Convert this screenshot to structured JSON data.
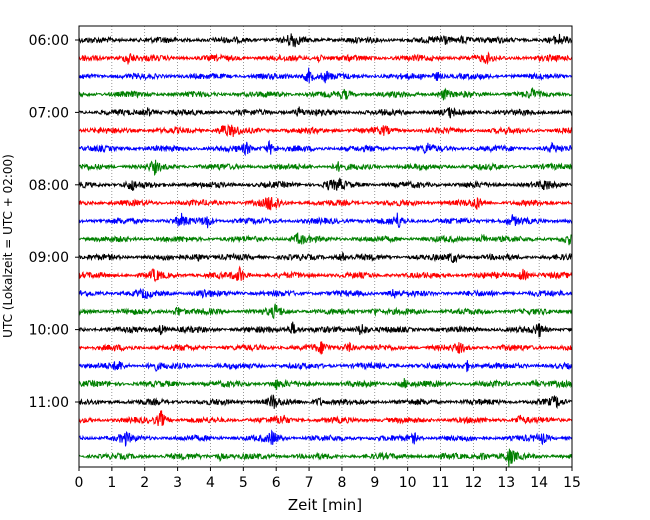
{
  "chart_data": {
    "type": "line",
    "xlabel": "Zeit  [min]",
    "ylabel": "UTC (Lokalzeit = UTC + 02:00)",
    "xlim": [
      0,
      15
    ],
    "x_ticks": [
      "0",
      "1",
      "2",
      "3",
      "4",
      "5",
      "6",
      "7",
      "8",
      "9",
      "10",
      "11",
      "12",
      "13",
      "14",
      "15"
    ],
    "y_ticks": [
      "06:00",
      "07:00",
      "08:00",
      "09:00",
      "10:00",
      "11:00"
    ],
    "y_tick_rows": [
      0,
      4,
      8,
      12,
      16,
      20
    ],
    "grid": "vertical dotted",
    "row_interval_min": 15,
    "rows": 24,
    "series_colors": [
      "#000000",
      "#ff0000",
      "#0000ff",
      "#008000"
    ],
    "traces": [
      {
        "start": "06:00",
        "color": "#000000",
        "events": [
          [
            6.5,
            1.0
          ],
          [
            11.1,
            0.7
          ],
          [
            11.7,
            0.6
          ],
          [
            14.6,
            0.5
          ]
        ]
      },
      {
        "start": "06:15",
        "color": "#ff0000",
        "events": [
          [
            1.5,
            0.8
          ],
          [
            7.3,
            0.4
          ],
          [
            12.4,
            0.4
          ]
        ]
      },
      {
        "start": "06:30",
        "color": "#0000ff",
        "events": [
          [
            7.0,
            0.9
          ],
          [
            7.5,
            0.6
          ],
          [
            10.9,
            0.5
          ]
        ]
      },
      {
        "start": "06:45",
        "color": "#008000",
        "events": [
          [
            8.1,
            0.5
          ],
          [
            11.1,
            0.6
          ],
          [
            13.8,
            0.4
          ]
        ]
      },
      {
        "start": "07:00",
        "color": "#000000",
        "events": [
          [
            2.1,
            0.5
          ],
          [
            6.7,
            0.5
          ],
          [
            11.3,
            0.4
          ]
        ]
      },
      {
        "start": "07:15",
        "color": "#ff0000",
        "events": [
          [
            4.4,
            0.7
          ],
          [
            4.7,
            0.5
          ],
          [
            9.3,
            0.4
          ]
        ]
      },
      {
        "start": "07:30",
        "color": "#0000ff",
        "events": [
          [
            5.1,
            0.6
          ],
          [
            5.8,
            0.8
          ],
          [
            10.6,
            0.5
          ],
          [
            14.4,
            0.4
          ]
        ]
      },
      {
        "start": "07:45",
        "color": "#008000",
        "events": [
          [
            2.3,
            0.6
          ],
          [
            7.9,
            0.4
          ]
        ]
      },
      {
        "start": "08:00",
        "color": "#000000",
        "events": [
          [
            1.6,
            0.6
          ],
          [
            7.6,
            0.4
          ],
          [
            7.9,
            0.6
          ],
          [
            14.2,
            0.5
          ]
        ]
      },
      {
        "start": "08:15",
        "color": "#ff0000",
        "events": [
          [
            5.8,
            0.7
          ],
          [
            6.0,
            0.5
          ],
          [
            12.1,
            0.6
          ]
        ]
      },
      {
        "start": "08:30",
        "color": "#0000ff",
        "events": [
          [
            3.1,
            0.7
          ],
          [
            3.9,
            0.7
          ],
          [
            9.7,
            0.8
          ],
          [
            13.2,
            0.5
          ]
        ]
      },
      {
        "start": "08:45",
        "color": "#008000",
        "events": [
          [
            6.7,
            0.7
          ],
          [
            12.3,
            0.5
          ],
          [
            14.9,
            0.5
          ]
        ]
      },
      {
        "start": "09:00",
        "color": "#000000",
        "events": [
          [
            3.6,
            0.5
          ],
          [
            8.0,
            0.5
          ],
          [
            11.4,
            0.6
          ]
        ]
      },
      {
        "start": "09:15",
        "color": "#ff0000",
        "events": [
          [
            2.3,
            0.6
          ],
          [
            4.9,
            0.9
          ],
          [
            13.5,
            0.7
          ]
        ]
      },
      {
        "start": "09:30",
        "color": "#0000ff",
        "events": [
          [
            2.0,
            0.4
          ],
          [
            3.8,
            0.4
          ],
          [
            9.6,
            0.5
          ]
        ]
      },
      {
        "start": "09:45",
        "color": "#008000",
        "events": [
          [
            3.0,
            0.6
          ],
          [
            6.0,
            0.8
          ],
          [
            9.0,
            0.4
          ]
        ]
      },
      {
        "start": "10:00",
        "color": "#000000",
        "events": [
          [
            2.5,
            0.6
          ],
          [
            6.5,
            0.8
          ],
          [
            8.6,
            0.9
          ],
          [
            14.0,
            0.7
          ]
        ]
      },
      {
        "start": "10:15",
        "color": "#ff0000",
        "events": [
          [
            7.4,
            0.6
          ],
          [
            8.2,
            0.6
          ],
          [
            11.6,
            0.5
          ]
        ]
      },
      {
        "start": "10:30",
        "color": "#0000ff",
        "events": [
          [
            1.2,
            0.6
          ],
          [
            2.3,
            0.5
          ],
          [
            11.8,
            0.6
          ]
        ]
      },
      {
        "start": "10:45",
        "color": "#008000",
        "events": [
          [
            6.0,
            0.5
          ],
          [
            9.9,
            0.5
          ],
          [
            13.9,
            0.4
          ]
        ]
      },
      {
        "start": "11:00",
        "color": "#000000",
        "events": [
          [
            5.9,
            0.8
          ],
          [
            7.3,
            0.5
          ],
          [
            14.5,
            0.6
          ]
        ]
      },
      {
        "start": "11:15",
        "color": "#ff0000",
        "events": [
          [
            2.5,
            1.0
          ],
          [
            6.2,
            0.5
          ],
          [
            13.4,
            0.5
          ]
        ]
      },
      {
        "start": "11:30",
        "color": "#0000ff",
        "events": [
          [
            1.4,
            0.7
          ],
          [
            5.9,
            0.8
          ],
          [
            10.2,
            0.5
          ],
          [
            14.1,
            0.5
          ]
        ]
      },
      {
        "start": "11:45",
        "color": "#008000",
        "events": [
          [
            4.3,
            0.4
          ],
          [
            12.3,
            0.5
          ],
          [
            13.1,
            1.0
          ]
        ]
      }
    ]
  }
}
